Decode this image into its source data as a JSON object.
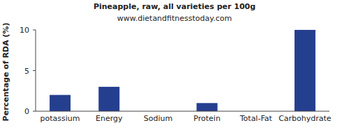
{
  "chart_data": {
    "type": "bar",
    "title": "Pineapple, raw, all varieties per 100g",
    "subtitle": "www.dietandfitnesstoday.com",
    "ylabel": "Percentage of RDA (%)",
    "categories": [
      "potassium",
      "Energy",
      "Sodium",
      "Protein",
      "Total-Fat",
      "Carbohydrate"
    ],
    "values": [
      2,
      3,
      0,
      1,
      0,
      10
    ],
    "color": "#253f8f",
    "ylim": [
      0,
      10
    ],
    "yticks": [
      0,
      5,
      10
    ],
    "grid": false
  }
}
